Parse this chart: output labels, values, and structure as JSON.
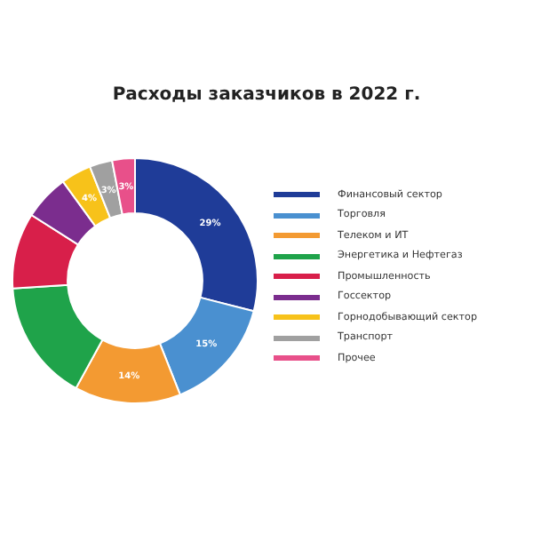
{
  "chart_data": {
    "type": "donut",
    "title": "Расходы заказчиков в 2022 г.",
    "categories": [
      "Финансовый сектор",
      "Торговля",
      "Телеком и ИТ",
      "Энергетика и Нефтегаз",
      "Промышленность",
      "Госсектор",
      "Горнодобывающий сектор",
      "Транспорт",
      "Прочее"
    ],
    "values": [
      29,
      15,
      14,
      16,
      10,
      6,
      4,
      3,
      3
    ],
    "colors": [
      "#1f3c98",
      "#4a90d0",
      "#f39a32",
      "#1fa34a",
      "#d81f4a",
      "#7b2d8e",
      "#f7c21a",
      "#a0a0a0",
      "#e8508a"
    ],
    "value_labels": [
      "29%",
      "15%",
      "14%",
      null,
      null,
      null,
      "4%",
      "3%",
      "3%"
    ],
    "legend": "right"
  }
}
